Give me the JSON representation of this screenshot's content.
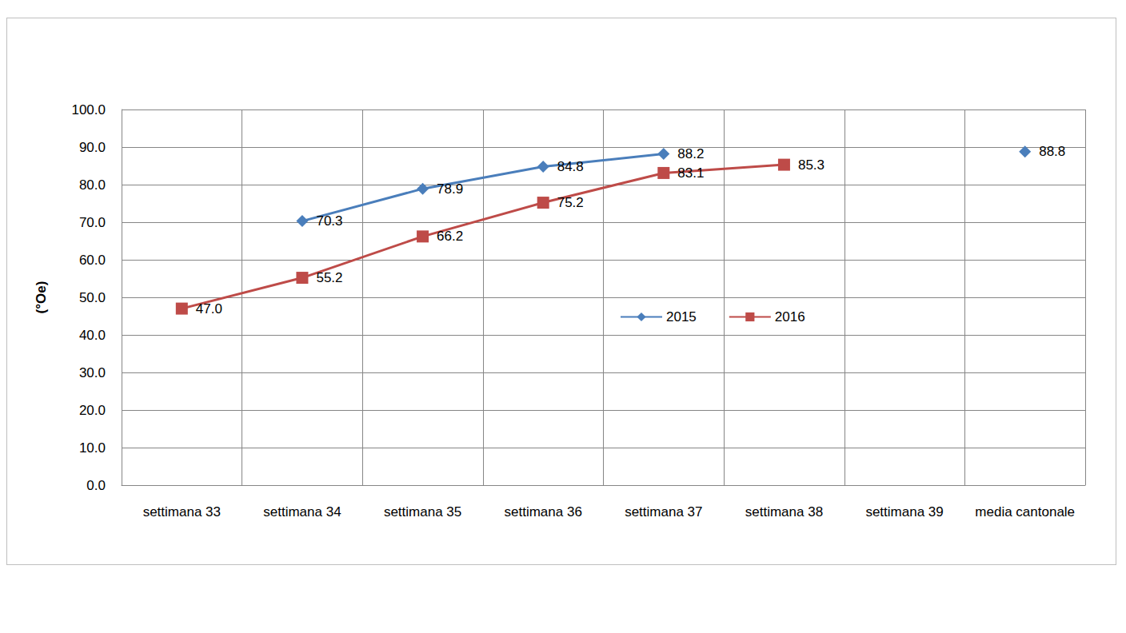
{
  "chart_data": {
    "type": "line",
    "y_label": "(°Oe)",
    "categories": [
      "settimana 33",
      "settimana 34",
      "settimana 35",
      "settimana 36",
      "settimana 37",
      "settimana 38",
      "settimana 39",
      "media cantonale"
    ],
    "series": [
      {
        "name": "2015",
        "color": "#4a7ebb",
        "marker": "diamond",
        "values": [
          null,
          70.3,
          78.9,
          84.8,
          88.2,
          null,
          null,
          88.8
        ],
        "value_labels": [
          null,
          "70.3",
          "78.9",
          "84.8",
          "88.2",
          null,
          null,
          "88.8"
        ]
      },
      {
        "name": "2016",
        "color": "#be4b48",
        "marker": "square",
        "values": [
          47.0,
          55.2,
          66.2,
          75.2,
          83.1,
          85.3,
          null,
          null
        ],
        "value_labels": [
          "47.0",
          "55.2",
          "66.2",
          "75.2",
          "83.1",
          "85.3",
          null,
          null
        ]
      }
    ],
    "ylim": [
      0,
      100
    ],
    "yticks": [
      {
        "value": 0,
        "label": "0.0"
      },
      {
        "value": 10,
        "label": "10.0"
      },
      {
        "value": 20,
        "label": "20.0"
      },
      {
        "value": 30,
        "label": "30.0"
      },
      {
        "value": 40,
        "label": "40.0"
      },
      {
        "value": 50,
        "label": "50.0"
      },
      {
        "value": 60,
        "label": "60.0"
      },
      {
        "value": 70,
        "label": "70.0"
      },
      {
        "value": 80,
        "label": "80.0"
      },
      {
        "value": 90,
        "label": "90.0"
      },
      {
        "value": 100,
        "label": "100.0"
      }
    ],
    "grid": true,
    "data_labels": true,
    "legend": "right"
  }
}
